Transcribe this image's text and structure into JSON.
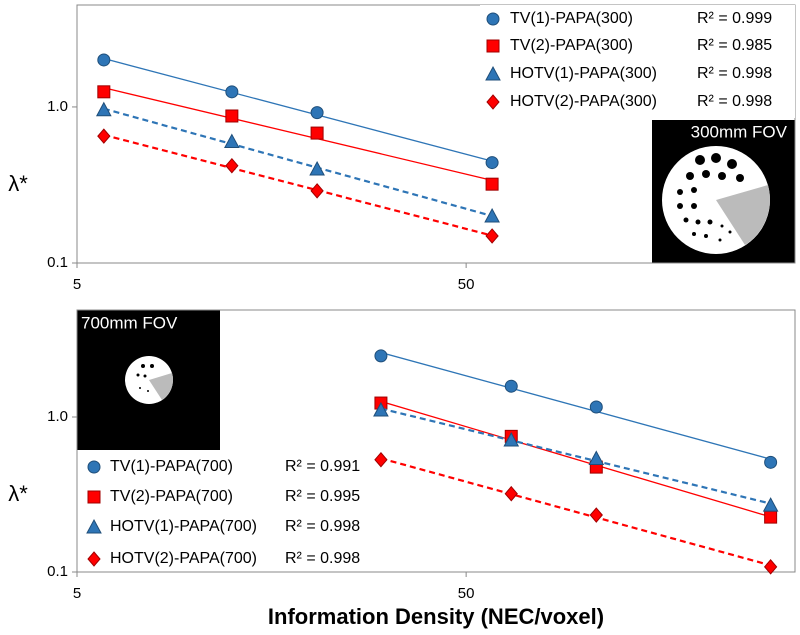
{
  "chart_data": [
    {
      "type": "scatter",
      "log_x": true,
      "log_y": true,
      "xlim": [
        5,
        350
      ],
      "ylim": [
        0.1,
        4.5
      ],
      "xticks": [
        5,
        50
      ],
      "yticks": [
        0.1,
        {
          "value": 1,
          "label": "1.0"
        }
      ],
      "ylabel": "λ*",
      "inset_label": "300mm FOV",
      "x": [
        5.86,
        12.5,
        20.7,
        58.3
      ],
      "series": [
        {
          "name": "TV(1)-PAPA(300)",
          "color": "#2e75b6",
          "marker": "circle",
          "dashed": false,
          "r2": {
            "value": 0.999,
            "label": "R² = 0.999"
          },
          "values": [
            2.0,
            1.25,
            0.92,
            0.44
          ]
        },
        {
          "name": "TV(2)-PAPA(300)",
          "color": "#ff0000",
          "marker": "square",
          "dashed": false,
          "r2": {
            "value": 0.985,
            "label": "R² = 0.985"
          },
          "values": [
            1.25,
            0.875,
            0.68,
            0.32
          ]
        },
        {
          "name": "HOTV(1)-PAPA(300)",
          "color": "#2e75b6",
          "marker": "triangle",
          "dashed": true,
          "r2": {
            "value": 0.998,
            "label": "R² = 0.998"
          },
          "values": [
            0.96,
            0.6,
            0.4,
            0.2
          ]
        },
        {
          "name": "HOTV(2)-PAPA(300)",
          "color": "#ff0000",
          "marker": "diamond",
          "dashed": true,
          "r2": {
            "value": 0.998,
            "label": "R² = 0.998"
          },
          "values": [
            0.65,
            0.42,
            0.29,
            0.149
          ]
        }
      ]
    },
    {
      "type": "scatter",
      "log_x": true,
      "log_y": true,
      "xlim": [
        5,
        350
      ],
      "ylim": [
        0.1,
        4.9
      ],
      "xticks": [
        5,
        50
      ],
      "yticks": [
        0.1,
        {
          "value": 1,
          "label": "1.0"
        }
      ],
      "ylabel": "λ*",
      "xlabel": "Information Density (NEC/voxel)",
      "inset_label": "700mm FOV",
      "x": [
        30.2,
        65.3,
        108,
        303
      ],
      "series": [
        {
          "name": "TV(1)-PAPA(700)",
          "color": "#2e75b6",
          "marker": "circle",
          "dashed": false,
          "r2": {
            "value": 0.991,
            "label": "R² = 0.991"
          },
          "values": [
            2.48,
            1.58,
            1.16,
            0.51
          ]
        },
        {
          "name": "TV(2)-PAPA(700)",
          "color": "#ff0000",
          "marker": "square",
          "dashed": false,
          "r2": {
            "value": 0.995,
            "label": "R² = 0.995"
          },
          "values": [
            1.23,
            0.75,
            0.475,
            0.226
          ]
        },
        {
          "name": "HOTV(1)-PAPA(700)",
          "color": "#2e75b6",
          "marker": "triangle",
          "dashed": true,
          "r2": {
            "value": 0.998,
            "label": "R² = 0.998"
          },
          "values": [
            1.11,
            0.71,
            0.54,
            0.27
          ]
        },
        {
          "name": "HOTV(2)-PAPA(700)",
          "color": "#ff0000",
          "marker": "diamond",
          "dashed": true,
          "r2": {
            "value": 0.998,
            "label": "R² = 0.998"
          },
          "values": [
            0.53,
            0.32,
            0.233,
            0.108
          ]
        }
      ]
    }
  ]
}
